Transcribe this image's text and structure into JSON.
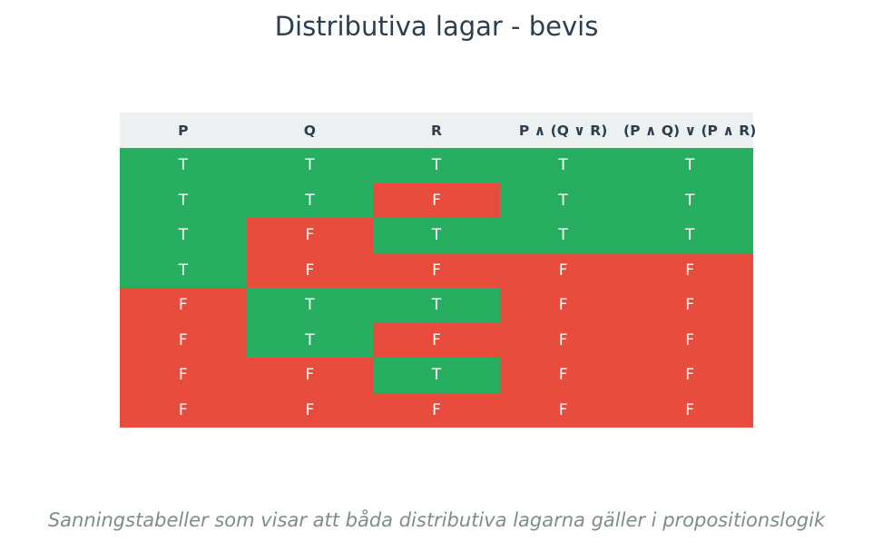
{
  "title": "Distributiva lagar - bevis",
  "caption": "Sanningstabeller som visar att båda distributiva lagarna gäller i propositionslogik",
  "colors": {
    "true": "#27ae60",
    "false": "#e74c3c",
    "header_bg": "#ecf0f1",
    "header_text": "#2c3e50",
    "caption_text": "#7f8c8d"
  },
  "chart_data": {
    "type": "table",
    "title": "Distributiva lagar - bevis",
    "columns": [
      "P",
      "Q",
      "R",
      "P ∧ (Q ∨ R)",
      "(P ∧ Q) ∨ (P ∧ R)"
    ],
    "rows": [
      [
        "T",
        "T",
        "T",
        "T",
        "T"
      ],
      [
        "T",
        "T",
        "F",
        "T",
        "T"
      ],
      [
        "T",
        "F",
        "T",
        "T",
        "T"
      ],
      [
        "T",
        "F",
        "F",
        "F",
        "F"
      ],
      [
        "F",
        "T",
        "T",
        "F",
        "F"
      ],
      [
        "F",
        "T",
        "F",
        "F",
        "F"
      ],
      [
        "F",
        "F",
        "T",
        "F",
        "F"
      ],
      [
        "F",
        "F",
        "F",
        "F",
        "F"
      ]
    ]
  }
}
